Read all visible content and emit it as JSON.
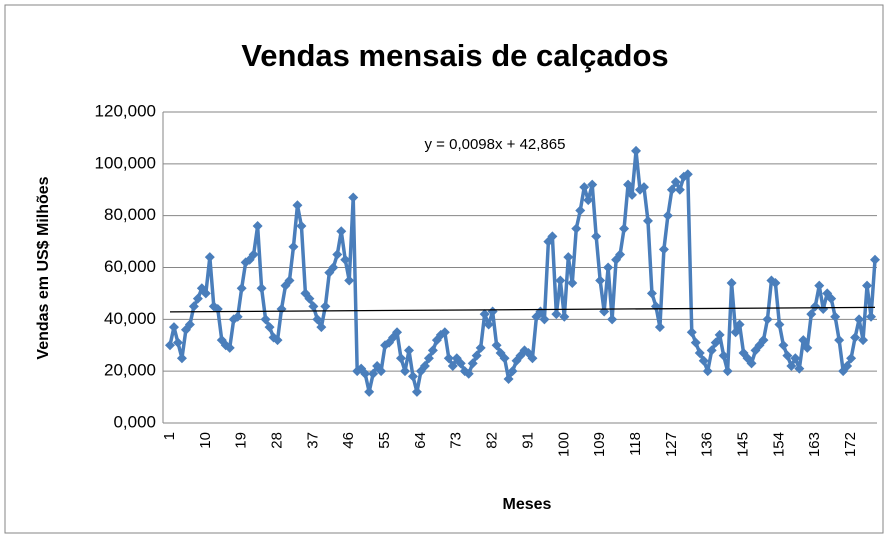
{
  "chart_data": {
    "type": "line",
    "title": "Vendas mensais de calçados",
    "y_label": "Vendas em US$ Milhões",
    "x_label": "Meses",
    "annotation": "y = 0,0098x + 42,865",
    "trendline": {
      "slope": 0.0098,
      "intercept": 42.865,
      "color": "#000000"
    },
    "ylim": [
      0,
      120
    ],
    "yticks": [
      {
        "value": 0,
        "label": "0,000"
      },
      {
        "value": 20,
        "label": "20,000"
      },
      {
        "value": 40,
        "label": "40,000"
      },
      {
        "value": 60,
        "label": "60,000"
      },
      {
        "value": 80,
        "label": "80,000"
      },
      {
        "value": 100,
        "label": "100,000"
      },
      {
        "value": 120,
        "label": "120,000"
      }
    ],
    "grid": true,
    "categories": [
      "1",
      null,
      null,
      null,
      null,
      null,
      null,
      null,
      null,
      "10",
      null,
      null,
      null,
      null,
      null,
      null,
      null,
      null,
      "19",
      null,
      null,
      null,
      null,
      null,
      null,
      null,
      null,
      "28",
      null,
      null,
      null,
      null,
      null,
      null,
      null,
      null,
      "37",
      null,
      null,
      null,
      null,
      null,
      null,
      null,
      null,
      "46",
      null,
      null,
      null,
      null,
      null,
      null,
      null,
      null,
      "55",
      null,
      null,
      null,
      null,
      null,
      null,
      null,
      null,
      "64",
      null,
      null,
      null,
      null,
      null,
      null,
      null,
      null,
      "73",
      null,
      null,
      null,
      null,
      null,
      null,
      null,
      null,
      "82",
      null,
      null,
      null,
      null,
      null,
      null,
      null,
      null,
      "91",
      null,
      null,
      null,
      null,
      null,
      null,
      null,
      null,
      "100",
      null,
      null,
      null,
      null,
      null,
      null,
      null,
      null,
      "109",
      null,
      null,
      null,
      null,
      null,
      null,
      null,
      null,
      "118",
      null,
      null,
      null,
      null,
      null,
      null,
      null,
      null,
      "127",
      null,
      null,
      null,
      null,
      null,
      null,
      null,
      null,
      "136",
      null,
      null,
      null,
      null,
      null,
      null,
      null,
      null,
      "145",
      null,
      null,
      null,
      null,
      null,
      null,
      null,
      null,
      "154",
      null,
      null,
      null,
      null,
      null,
      null,
      null,
      null,
      "163",
      null,
      null,
      null,
      null,
      null,
      null,
      null,
      null,
      "172",
      null,
      null,
      null,
      null,
      null,
      null
    ],
    "series": [
      {
        "color": "#4a7ebb",
        "values": [
          30,
          37,
          31,
          25,
          36,
          38,
          45,
          48,
          52,
          50,
          64,
          45,
          44,
          32,
          30,
          29,
          40,
          41,
          52,
          62,
          63,
          65,
          76,
          52,
          40,
          37,
          33,
          32,
          44,
          53,
          55,
          68,
          84,
          76,
          50,
          48,
          45,
          40,
          37,
          45,
          58,
          60,
          65,
          74,
          63,
          55,
          87,
          20,
          21,
          19,
          12,
          19,
          22,
          20,
          30,
          31,
          33,
          35,
          25,
          20,
          28,
          18,
          12,
          20,
          22,
          25,
          28,
          32,
          34,
          35,
          25,
          22,
          25,
          23,
          20,
          19,
          23,
          26,
          29,
          42,
          38,
          43,
          30,
          27,
          25,
          17,
          20,
          24,
          26,
          28,
          27,
          25,
          41,
          43,
          40,
          70,
          72,
          42,
          55,
          41,
          64,
          54,
          75,
          82,
          91,
          86,
          92,
          72,
          55,
          43,
          60,
          40,
          63,
          65,
          75,
          92,
          88,
          105,
          90,
          91,
          78,
          50,
          45,
          37,
          67,
          80,
          90,
          93,
          90,
          95,
          96,
          35,
          31,
          27,
          24,
          20,
          28,
          31,
          34,
          26,
          20,
          54,
          35,
          38,
          27,
          25,
          23,
          28,
          30,
          32,
          40,
          55,
          54,
          38,
          30,
          26,
          22,
          25,
          21,
          32,
          29,
          42,
          45,
          53,
          44,
          50,
          48,
          41,
          32,
          20,
          22,
          25,
          33,
          40,
          32,
          53,
          41,
          63
        ]
      }
    ]
  }
}
